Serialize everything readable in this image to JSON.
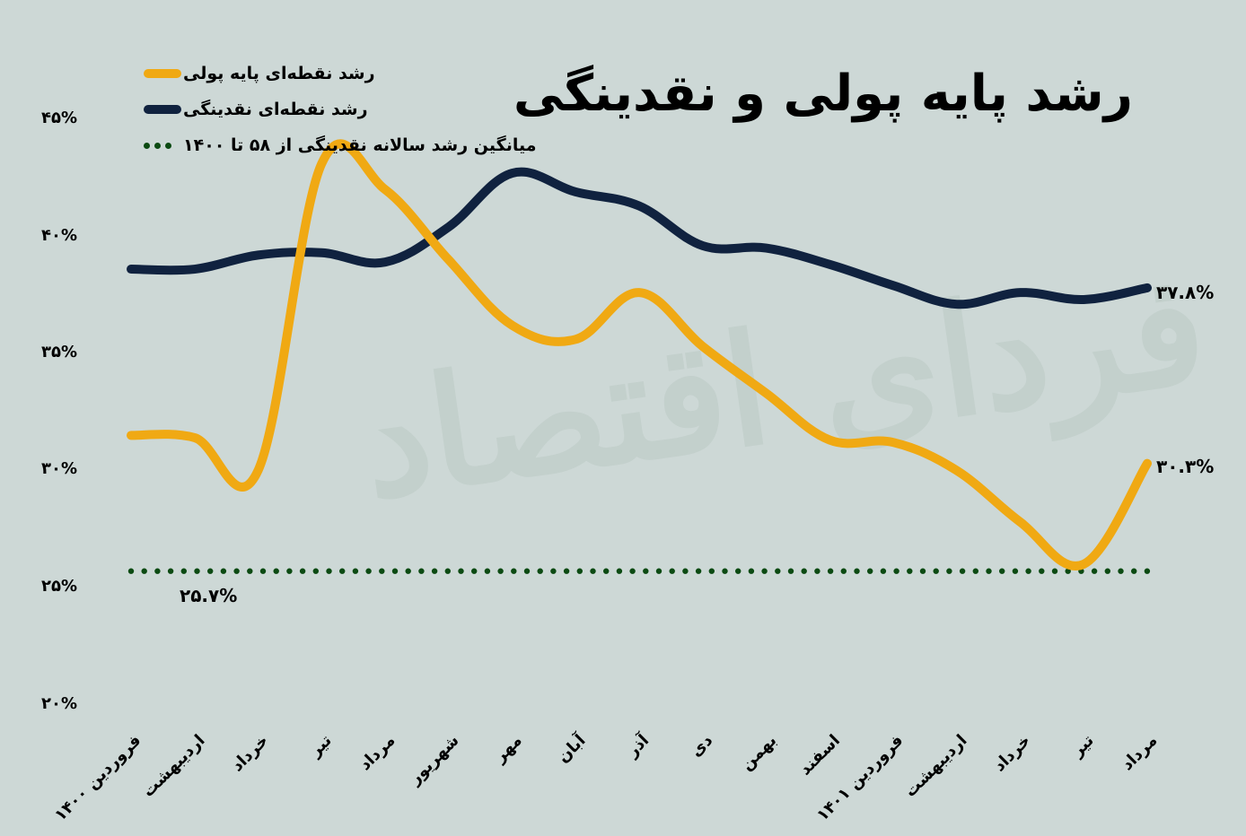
{
  "title": "رشد پایه پولی و نقدینگی",
  "watermark": "فردای اقتصاد",
  "legend": {
    "items": [
      {
        "label": "رشد نقطه‌ای پایه پولی",
        "color": "#f0a913",
        "style": "line"
      },
      {
        "label": "رشد نقطه‌ای نقدینگی",
        "color": "#10223f",
        "style": "line"
      },
      {
        "label": "میانگین رشد سالانه نقدینگی از ۵۸ تا ۱۴۰۰",
        "color": "#0b4a12",
        "style": "dots"
      }
    ]
  },
  "y_axis": {
    "ticks": [
      "۴۵%",
      "۴۰%",
      "۳۵%",
      "۳۰%",
      "۲۵%",
      "۲۰%"
    ]
  },
  "x_axis": {
    "ticks": [
      "فروردین ۱۴۰۰",
      "اردیبهشت",
      "خرداد",
      "تیر",
      "مرداد",
      "شهریور",
      "مهر",
      "آبان",
      "آذر",
      "دی",
      "بهمن",
      "اسفند",
      "فروردین ۱۴۰۱",
      "اردیبهشت",
      "خرداد",
      "تیر",
      "مرداد"
    ]
  },
  "labels": {
    "liquidity_end": "۳۷.۸%",
    "base_money_end": "۳۰.۳%",
    "average": "۲۵.۷%"
  },
  "chart_data": {
    "type": "line",
    "title": "رشد پایه پولی و نقدینگی",
    "xlabel": "",
    "ylabel": "",
    "ylim": [
      20,
      45
    ],
    "grid": false,
    "legend_position": "top-left",
    "categories": [
      "فروردین ۱۴۰۰",
      "اردیبهشت",
      "خرداد",
      "تیر",
      "مرداد",
      "شهریور",
      "مهر",
      "آبان",
      "آذر",
      "دی",
      "بهمن",
      "اسفند",
      "فروردین ۱۴۰۱",
      "اردیبهشت",
      "خرداد",
      "تیر",
      "مرداد"
    ],
    "series": [
      {
        "name": "رشد نقطه‌ای پایه پولی",
        "color": "#f0a913",
        "values": [
          31.5,
          31.4,
          30.0,
          43.1,
          42.0,
          39.0,
          36.2,
          35.6,
          37.6,
          35.3,
          33.3,
          31.3,
          31.2,
          30.0,
          27.8,
          26.0,
          30.3
        ]
      },
      {
        "name": "رشد نقطه‌ای نقدینگی",
        "color": "#10223f",
        "values": [
          38.6,
          38.6,
          39.2,
          39.3,
          38.9,
          40.4,
          42.7,
          41.9,
          41.3,
          39.6,
          39.5,
          38.8,
          37.9,
          37.1,
          37.6,
          37.3,
          37.8
        ]
      },
      {
        "name": "میانگین رشد سالانه نقدینگی از ۵۸ تا ۱۴۰۰",
        "color": "#0b4a12",
        "style": "dotted",
        "values": [
          25.7,
          25.7,
          25.7,
          25.7,
          25.7,
          25.7,
          25.7,
          25.7,
          25.7,
          25.7,
          25.7,
          25.7,
          25.7,
          25.7,
          25.7,
          25.7,
          25.7
        ]
      }
    ],
    "annotations": [
      {
        "text": "۳۷.۸%",
        "series": "رشد نقطه‌ای نقدینگی",
        "at": "مرداد"
      },
      {
        "text": "۳۰.۳%",
        "series": "رشد نقطه‌ای پایه پولی",
        "at": "مرداد"
      },
      {
        "text": "۲۵.۷%",
        "series": "میانگین",
        "at": "اردیبهشت"
      }
    ]
  }
}
